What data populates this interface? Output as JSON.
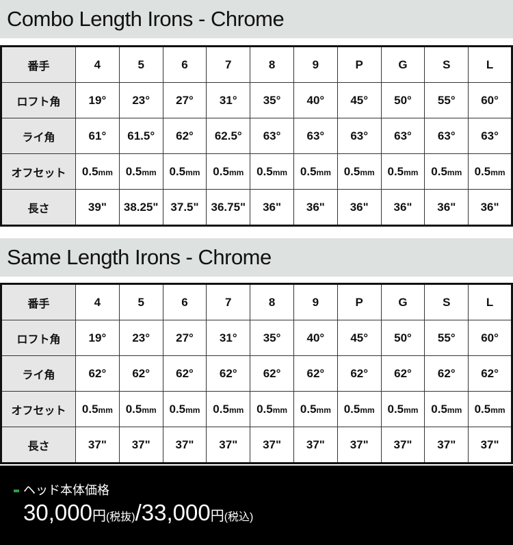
{
  "sections": [
    {
      "title": "Combo Length Irons - Chrome",
      "rows": [
        {
          "label": "番手",
          "values": [
            "4",
            "5",
            "6",
            "7",
            "8",
            "9",
            "P",
            "G",
            "S",
            "L"
          ]
        },
        {
          "label": "ロフト角",
          "values": [
            "19°",
            "23°",
            "27°",
            "31°",
            "35°",
            "40°",
            "45°",
            "50°",
            "55°",
            "60°"
          ]
        },
        {
          "label": "ライ角",
          "values": [
            "61°",
            "61.5°",
            "62°",
            "62.5°",
            "63°",
            "63°",
            "63°",
            "63°",
            "63°",
            "63°"
          ]
        },
        {
          "label": "オフセット",
          "values": [
            "0.5",
            "0.5",
            "0.5",
            "0.5",
            "0.5",
            "0.5",
            "0.5",
            "0.5",
            "0.5",
            "0.5"
          ],
          "unit": "mm"
        },
        {
          "label": "長さ",
          "values": [
            "39\"",
            "38.25\"",
            "37.5\"",
            "36.75\"",
            "36\"",
            "36\"",
            "36\"",
            "36\"",
            "36\"",
            "36\""
          ]
        }
      ]
    },
    {
      "title": "Same Length Irons - Chrome",
      "rows": [
        {
          "label": "番手",
          "values": [
            "4",
            "5",
            "6",
            "7",
            "8",
            "9",
            "P",
            "G",
            "S",
            "L"
          ]
        },
        {
          "label": "ロフト角",
          "values": [
            "19°",
            "23°",
            "27°",
            "31°",
            "35°",
            "40°",
            "45°",
            "50°",
            "55°",
            "60°"
          ]
        },
        {
          "label": "ライ角",
          "values": [
            "62°",
            "62°",
            "62°",
            "62°",
            "62°",
            "62°",
            "62°",
            "62°",
            "62°",
            "62°"
          ]
        },
        {
          "label": "オフセット",
          "values": [
            "0.5",
            "0.5",
            "0.5",
            "0.5",
            "0.5",
            "0.5",
            "0.5",
            "0.5",
            "0.5",
            "0.5"
          ],
          "unit": "mm"
        },
        {
          "label": "長さ",
          "values": [
            "37\"",
            "37\"",
            "37\"",
            "37\"",
            "37\"",
            "37\"",
            "37\"",
            "37\"",
            "37\"",
            "37\""
          ]
        }
      ]
    }
  ],
  "price": {
    "label": "ヘッド本体価格",
    "excl": "30,000",
    "yen": "円",
    "excl_note": "(税抜)",
    "sep": "/",
    "incl": "33,000",
    "incl_note": "(税込)"
  },
  "colors": {
    "band": "#dde1df",
    "header_cell": "#e6e6e6",
    "accent": "#2ea043"
  }
}
